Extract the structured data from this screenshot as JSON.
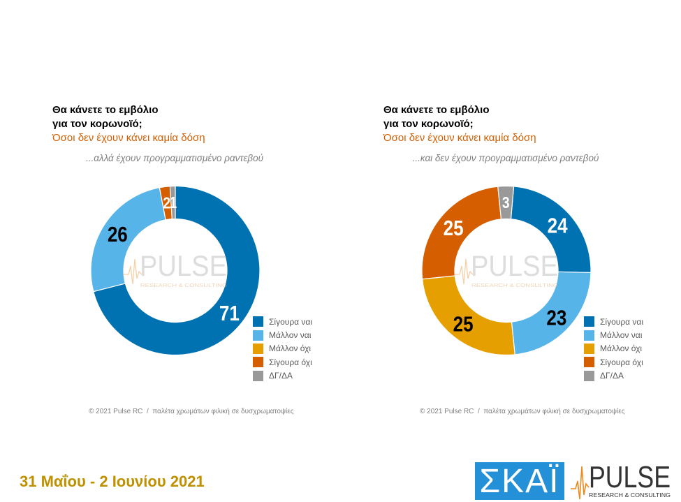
{
  "chart_data": [
    {
      "type": "pie",
      "donut": true,
      "title_lines": [
        "Θα κάνετε το εμβόλιο",
        "για τον κορωνοϊό;"
      ],
      "subtitle": "Όσοι δεν έχουν κάνει καμία δόση",
      "note": "...αλλά έχουν προγραμματισμένο ραντεβού",
      "categories": [
        "Σίγουρα ναι",
        "Μάλλον ναι",
        "Μάλλον όχι",
        "Σίγουρα όχι",
        "ΔΓ/ΔΑ"
      ],
      "values": [
        71,
        26,
        0,
        2,
        1
      ],
      "colors": [
        "#0072B2",
        "#56B4E9",
        "#E69F00",
        "#D55E00",
        "#999999"
      ],
      "label_colors": [
        "#FFFFFF",
        "#000000",
        "#000000",
        "#FFFFFF",
        "#FFFFFF"
      ],
      "legend_position": "right",
      "footer": "© 2021 Pulse RC  /  παλέτα χρωμάτων φιλική σε δυσχρωματοψίες"
    },
    {
      "type": "pie",
      "donut": true,
      "title_lines": [
        "Θα κάνετε το εμβόλιο",
        "για τον κορωνοϊό;"
      ],
      "subtitle": "Όσοι δεν έχουν κάνει καμία δόση",
      "note": "...και δεν έχουν προγραμματισμένο ραντεβού",
      "categories": [
        "Σίγουρα ναι",
        "Μάλλον ναι",
        "Μάλλον όχι",
        "Σίγουρα όχι",
        "ΔΓ/ΔΑ"
      ],
      "values": [
        24,
        23,
        25,
        25,
        3
      ],
      "colors": [
        "#0072B2",
        "#56B4E9",
        "#E69F00",
        "#D55E00",
        "#999999"
      ],
      "label_colors": [
        "#FFFFFF",
        "#000000",
        "#000000",
        "#FFFFFF",
        "#FFFFFF"
      ],
      "legend_position": "right",
      "footer": "© 2021 Pulse RC  /  παλέτα χρωμάτων φιλική σε δυσχρωματοψίες"
    }
  ],
  "survey_dates": "31 Μαΐου - 2 Ιουνίου 2021",
  "branding": {
    "skai_logo": "ΣΚΑΪ",
    "pulse_logo": "PULSE",
    "pulse_tagline": "RESEARCH & CONSULTING"
  },
  "colors": {
    "subtitle": "#D55E00",
    "note": "#7F7F7F",
    "date": "#BF9000",
    "skai_blue": "#2490D8",
    "pulse_accent": "#EE8A1E"
  }
}
